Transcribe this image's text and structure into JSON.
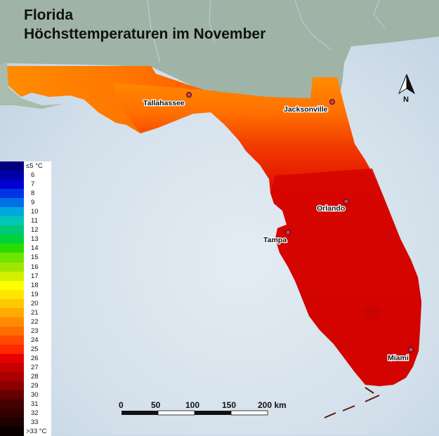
{
  "title_line1": "Florida",
  "title_line2": "Höchsttemperaturen im November",
  "north_label": "N",
  "cities": [
    {
      "name": "Tallahassee"
    },
    {
      "name": "Jacksonville"
    },
    {
      "name": "Orlando"
    },
    {
      "name": "Tampa"
    },
    {
      "name": "Miami"
    }
  ],
  "scale_bar": {
    "labels": [
      "0",
      "50",
      "100",
      "150",
      "200 km"
    ]
  },
  "legend": [
    {
      "label": "≤5 °C",
      "color": "#000080"
    },
    {
      "label": "6",
      "color": "#0000a8"
    },
    {
      "label": "7",
      "color": "#0000d2"
    },
    {
      "label": "8",
      "color": "#0032e6"
    },
    {
      "label": "9",
      "color": "#0070e6"
    },
    {
      "label": "10",
      "color": "#00a8dc"
    },
    {
      "label": "11",
      "color": "#00c8b4"
    },
    {
      "label": "12",
      "color": "#00c878"
    },
    {
      "label": "13",
      "color": "#00d23c"
    },
    {
      "label": "14",
      "color": "#28dc00"
    },
    {
      "label": "15",
      "color": "#6ee600"
    },
    {
      "label": "16",
      "color": "#a0e600"
    },
    {
      "label": "17",
      "color": "#d2f000"
    },
    {
      "label": "18",
      "color": "#ffff00"
    },
    {
      "label": "19",
      "color": "#ffe600"
    },
    {
      "label": "20",
      "color": "#ffc800"
    },
    {
      "label": "21",
      "color": "#ffaa00"
    },
    {
      "label": "22",
      "color": "#ff8c00"
    },
    {
      "label": "23",
      "color": "#ff6e00"
    },
    {
      "label": "24",
      "color": "#ff4a00"
    },
    {
      "label": "25",
      "color": "#ff2800"
    },
    {
      "label": "26",
      "color": "#e60000"
    },
    {
      "label": "27",
      "color": "#c80000"
    },
    {
      "label": "28",
      "color": "#aa0000"
    },
    {
      "label": "29",
      "color": "#8c0000"
    },
    {
      "label": "30",
      "color": "#640000"
    },
    {
      "label": "31",
      "color": "#460000"
    },
    {
      "label": "32",
      "color": "#320000"
    },
    {
      "label": "33",
      "color": "#1e0000"
    },
    {
      "label": ">33 °C",
      "color": "#0a0000"
    }
  ]
}
